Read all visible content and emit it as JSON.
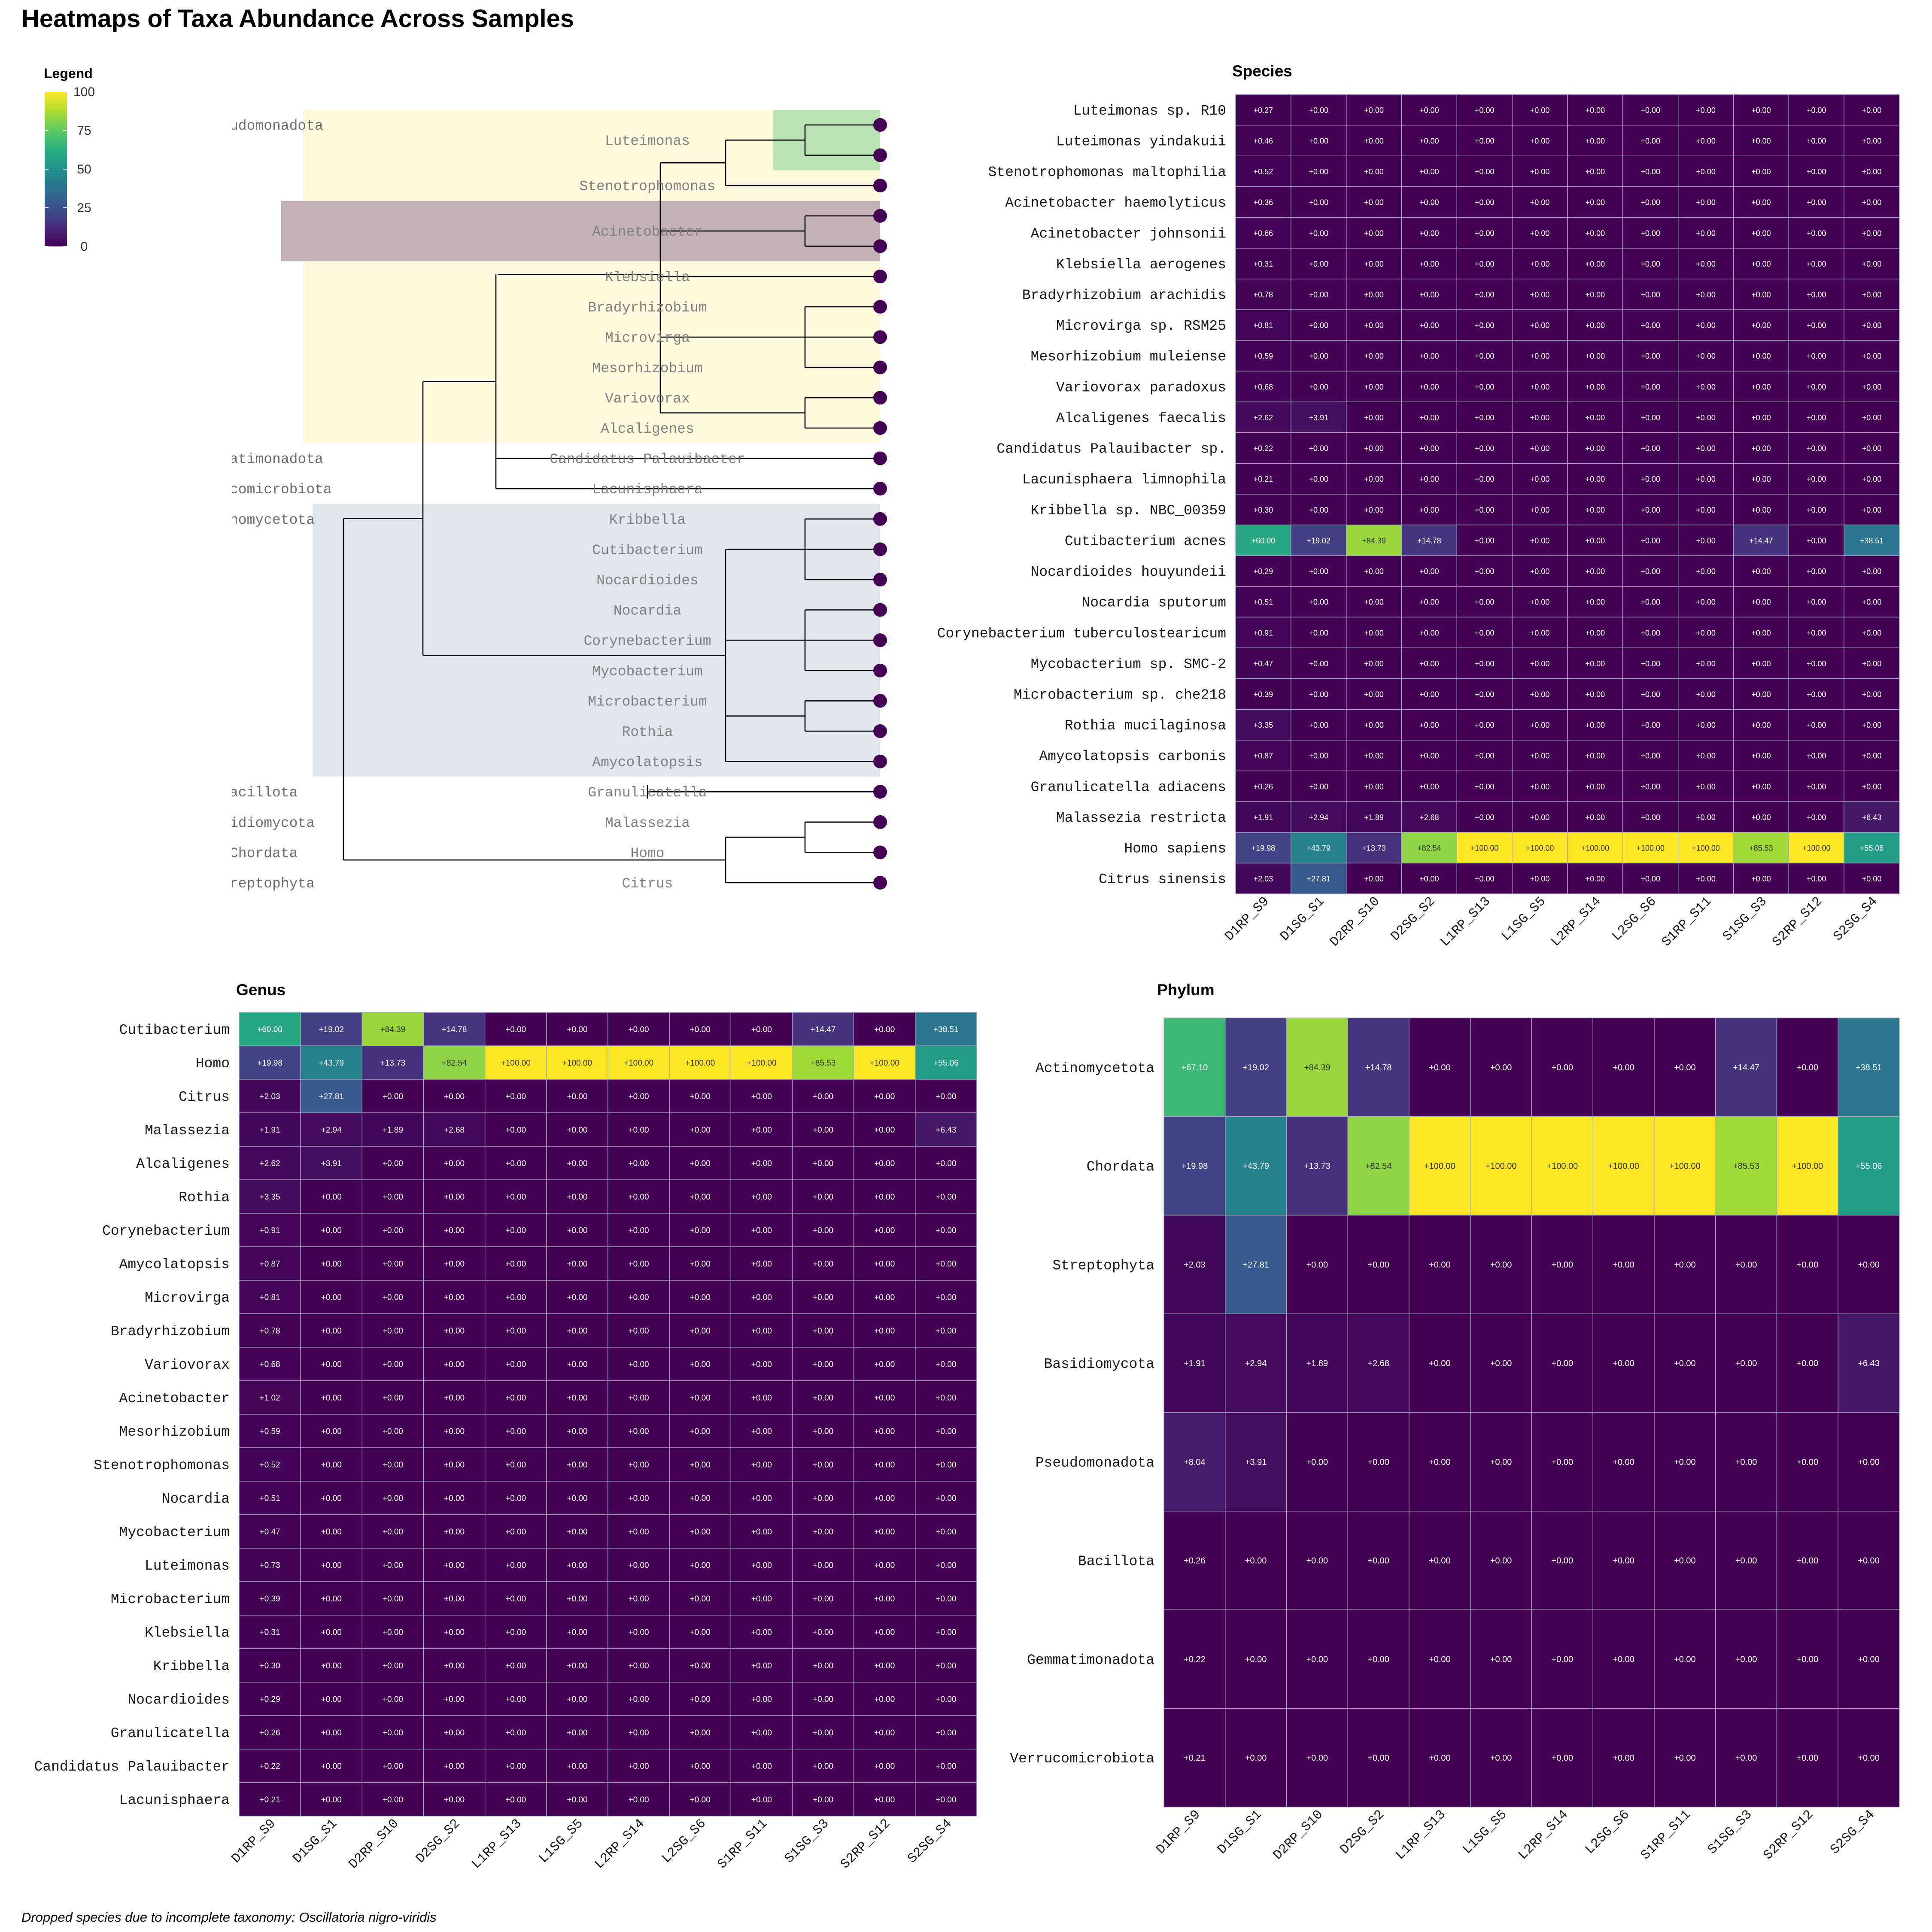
{
  "title": "Heatmaps of Taxa Abundance Across Samples",
  "footnote": "Dropped species due to incomplete taxonomy: Oscillatoria nigro-viridis",
  "legend": {
    "title": "Legend",
    "ticks": [
      100,
      75,
      50,
      25,
      0
    ],
    "range": [
      0,
      100
    ],
    "palette": "viridis"
  },
  "samples": [
    "D1RP_S9",
    "D1SG_S1",
    "D2RP_S10",
    "D2SG_S2",
    "L1RP_S13",
    "L1SG_S5",
    "L2RP_S14",
    "L2SG_S6",
    "S1RP_S11",
    "S1SG_S3",
    "S2RP_S12",
    "S2SG_S4"
  ],
  "tree": {
    "tips": [
      "Luteimonas",
      "Luteimonas",
      "Stenotrophomonas",
      "Acinetobacter",
      "Acinetobacter",
      "Klebsiella",
      "Bradyrhizobium",
      "Microvirga",
      "Mesorhizobium",
      "Variovorax",
      "Alcaligenes",
      "Candidatus Palauibacter",
      "Lacunisphaera",
      "Kribbella",
      "Cutibacterium",
      "Nocardioides",
      "Nocardia",
      "Corynebacterium",
      "Mycobacterium",
      "Microbacterium",
      "Rothia",
      "Amycolatopsis",
      "Granulicatella",
      "Malassezia",
      "Homo",
      "Citrus"
    ],
    "genus_labels": [
      "Luteimonas",
      "Stenotrophomonas",
      "Acinetobacter",
      "Klebsiella",
      "Bradyrhizobium",
      "Microvirga",
      "Mesorhizobium",
      "Variovorax",
      "Alcaligenes",
      "Candidatus Palauibacter",
      "Lacunisphaera",
      "Kribbella",
      "Cutibacterium",
      "Nocardioides",
      "Nocardia",
      "Corynebacterium",
      "Mycobacterium",
      "Microbacterium",
      "Rothia",
      "Amycolatopsis",
      "Granulicatella",
      "Malassezia",
      "Homo",
      "Citrus"
    ],
    "phylum_labels": [
      {
        "text": "udomonadota",
        "tip": 0
      },
      {
        "text": "atimonadota",
        "tip": 11
      },
      {
        "text": "comicrobiota",
        "tip": 12
      },
      {
        "text": "nomycetota",
        "tip": 13
      },
      {
        "text": "acillota",
        "tip": 22
      },
      {
        "text": "idiomycota",
        "tip": 23
      },
      {
        "text": "Chordata",
        "tip": 24
      },
      {
        "text": "reptophyta",
        "tip": 25
      }
    ],
    "highlights": [
      {
        "name": "Pseudomonadota",
        "color": "#fdf9dc"
      },
      {
        "name": "Actinomycetota",
        "color": "#e1e6ec"
      },
      {
        "name": "Luteimonas",
        "color": "#b9e3b3"
      },
      {
        "name": "Acinetobacter",
        "color": "#c3b1b7"
      }
    ],
    "tip_color": "#440154",
    "label_color": "#7f7f7f"
  },
  "chart_data": [
    {
      "type": "heatmap",
      "title": "Species",
      "x": [
        "D1RP_S9",
        "D1SG_S1",
        "D2RP_S10",
        "D2SG_S2",
        "L1RP_S13",
        "L1SG_S5",
        "L2RP_S14",
        "L2SG_S6",
        "S1RP_S11",
        "S1SG_S3",
        "S2RP_S12",
        "S2SG_S4"
      ],
      "rows": [
        "Luteimonas sp. R10",
        "Luteimonas yindakuii",
        "Stenotrophomonas maltophilia",
        "Acinetobacter haemolyticus",
        "Acinetobacter johnsonii",
        "Klebsiella aerogenes",
        "Bradyrhizobium arachidis",
        "Microvirga sp. RSM25",
        "Mesorhizobium muleiense",
        "Variovorax paradoxus",
        "Alcaligenes faecalis",
        "Candidatus Palauibacter sp.",
        "Lacunisphaera limnophila",
        "Kribbella sp. NBC_00359",
        "Cutibacterium acnes",
        "Nocardioides houyundeii",
        "Nocardia sputorum",
        "Corynebacterium tuberculostearicum",
        "Mycobacterium sp. SMC-2",
        "Microbacterium sp. che218",
        "Rothia mucilaginosa",
        "Amycolatopsis carbonis",
        "Granulicatella adiacens",
        "Malassezia restricta",
        "Homo sapiens",
        "Citrus sinensis"
      ],
      "values": [
        [
          0.27,
          0,
          0,
          0,
          0,
          0,
          0,
          0,
          0,
          0,
          0,
          0
        ],
        [
          0.46,
          0,
          0,
          0,
          0,
          0,
          0,
          0,
          0,
          0,
          0,
          0
        ],
        [
          0.52,
          0,
          0,
          0,
          0,
          0,
          0,
          0,
          0,
          0,
          0,
          0
        ],
        [
          0.36,
          0,
          0,
          0,
          0,
          0,
          0,
          0,
          0,
          0,
          0,
          0
        ],
        [
          0.66,
          0,
          0,
          0,
          0,
          0,
          0,
          0,
          0,
          0,
          0,
          0
        ],
        [
          0.31,
          0,
          0,
          0,
          0,
          0,
          0,
          0,
          0,
          0,
          0,
          0
        ],
        [
          0.78,
          0,
          0,
          0,
          0,
          0,
          0,
          0,
          0,
          0,
          0,
          0
        ],
        [
          0.81,
          0,
          0,
          0,
          0,
          0,
          0,
          0,
          0,
          0,
          0,
          0
        ],
        [
          0.59,
          0,
          0,
          0,
          0,
          0,
          0,
          0,
          0,
          0,
          0,
          0
        ],
        [
          0.68,
          0,
          0,
          0,
          0,
          0,
          0,
          0,
          0,
          0,
          0,
          0
        ],
        [
          2.62,
          3.91,
          0,
          0,
          0,
          0,
          0,
          0,
          0,
          0,
          0,
          0
        ],
        [
          0.22,
          0,
          0,
          0,
          0,
          0,
          0,
          0,
          0,
          0,
          0,
          0
        ],
        [
          0.21,
          0,
          0,
          0,
          0,
          0,
          0,
          0,
          0,
          0,
          0,
          0
        ],
        [
          0.3,
          0,
          0,
          0,
          0,
          0,
          0,
          0,
          0,
          0,
          0,
          0
        ],
        [
          60.0,
          19.02,
          84.39,
          14.78,
          0,
          0,
          0,
          0,
          0,
          14.47,
          0,
          38.51
        ],
        [
          0.29,
          0,
          0,
          0,
          0,
          0,
          0,
          0,
          0,
          0,
          0,
          0
        ],
        [
          0.51,
          0,
          0,
          0,
          0,
          0,
          0,
          0,
          0,
          0,
          0,
          0
        ],
        [
          0.91,
          0,
          0,
          0,
          0,
          0,
          0,
          0,
          0,
          0,
          0,
          0
        ],
        [
          0.47,
          0,
          0,
          0,
          0,
          0,
          0,
          0,
          0,
          0,
          0,
          0
        ],
        [
          0.39,
          0,
          0,
          0,
          0,
          0,
          0,
          0,
          0,
          0,
          0,
          0
        ],
        [
          3.35,
          0,
          0,
          0,
          0,
          0,
          0,
          0,
          0,
          0,
          0,
          0
        ],
        [
          0.87,
          0,
          0,
          0,
          0,
          0,
          0,
          0,
          0,
          0,
          0,
          0
        ],
        [
          0.26,
          0,
          0,
          0,
          0,
          0,
          0,
          0,
          0,
          0,
          0,
          0
        ],
        [
          1.91,
          2.94,
          1.89,
          2.68,
          0,
          0,
          0,
          0,
          0,
          0,
          0,
          6.43
        ],
        [
          19.98,
          43.79,
          13.73,
          82.54,
          100,
          100,
          100,
          100,
          100,
          85.53,
          100,
          55.06
        ],
        [
          2.03,
          27.81,
          0,
          0,
          0,
          0,
          0,
          0,
          0,
          0,
          0,
          0
        ]
      ]
    },
    {
      "type": "heatmap",
      "title": "Genus",
      "x": [
        "D1RP_S9",
        "D1SG_S1",
        "D2RP_S10",
        "D2SG_S2",
        "L1RP_S13",
        "L1SG_S5",
        "L2RP_S14",
        "L2SG_S6",
        "S1RP_S11",
        "S1SG_S3",
        "S2RP_S12",
        "S2SG_S4"
      ],
      "rows": [
        "Cutibacterium",
        "Homo",
        "Citrus",
        "Malassezia",
        "Alcaligenes",
        "Rothia",
        "Corynebacterium",
        "Amycolatopsis",
        "Microvirga",
        "Bradyrhizobium",
        "Variovorax",
        "Acinetobacter",
        "Mesorhizobium",
        "Stenotrophomonas",
        "Nocardia",
        "Mycobacterium",
        "Luteimonas",
        "Microbacterium",
        "Klebsiella",
        "Kribbella",
        "Nocardioides",
        "Granulicatella",
        "Candidatus Palauibacter",
        "Lacunisphaera"
      ],
      "values": [
        [
          60.0,
          19.02,
          84.39,
          14.78,
          0,
          0,
          0,
          0,
          0,
          14.47,
          0,
          38.51
        ],
        [
          19.98,
          43.79,
          13.73,
          82.54,
          100,
          100,
          100,
          100,
          100,
          85.53,
          100,
          55.06
        ],
        [
          2.03,
          27.81,
          0,
          0,
          0,
          0,
          0,
          0,
          0,
          0,
          0,
          0
        ],
        [
          1.91,
          2.94,
          1.89,
          2.68,
          0,
          0,
          0,
          0,
          0,
          0,
          0,
          6.43
        ],
        [
          2.62,
          3.91,
          0,
          0,
          0,
          0,
          0,
          0,
          0,
          0,
          0,
          0
        ],
        [
          3.35,
          0,
          0,
          0,
          0,
          0,
          0,
          0,
          0,
          0,
          0,
          0
        ],
        [
          0.91,
          0,
          0,
          0,
          0,
          0,
          0,
          0,
          0,
          0,
          0,
          0
        ],
        [
          0.87,
          0,
          0,
          0,
          0,
          0,
          0,
          0,
          0,
          0,
          0,
          0
        ],
        [
          0.81,
          0,
          0,
          0,
          0,
          0,
          0,
          0,
          0,
          0,
          0,
          0
        ],
        [
          0.78,
          0,
          0,
          0,
          0,
          0,
          0,
          0,
          0,
          0,
          0,
          0
        ],
        [
          0.68,
          0,
          0,
          0,
          0,
          0,
          0,
          0,
          0,
          0,
          0,
          0
        ],
        [
          1.02,
          0,
          0,
          0,
          0,
          0,
          0,
          0,
          0,
          0,
          0,
          0
        ],
        [
          0.59,
          0,
          0,
          0,
          0,
          0,
          0,
          0,
          0,
          0,
          0,
          0
        ],
        [
          0.52,
          0,
          0,
          0,
          0,
          0,
          0,
          0,
          0,
          0,
          0,
          0
        ],
        [
          0.51,
          0,
          0,
          0,
          0,
          0,
          0,
          0,
          0,
          0,
          0,
          0
        ],
        [
          0.47,
          0,
          0,
          0,
          0,
          0,
          0,
          0,
          0,
          0,
          0,
          0
        ],
        [
          0.73,
          0,
          0,
          0,
          0,
          0,
          0,
          0,
          0,
          0,
          0,
          0
        ],
        [
          0.39,
          0,
          0,
          0,
          0,
          0,
          0,
          0,
          0,
          0,
          0,
          0
        ],
        [
          0.31,
          0,
          0,
          0,
          0,
          0,
          0,
          0,
          0,
          0,
          0,
          0
        ],
        [
          0.3,
          0,
          0,
          0,
          0,
          0,
          0,
          0,
          0,
          0,
          0,
          0
        ],
        [
          0.29,
          0,
          0,
          0,
          0,
          0,
          0,
          0,
          0,
          0,
          0,
          0
        ],
        [
          0.26,
          0,
          0,
          0,
          0,
          0,
          0,
          0,
          0,
          0,
          0,
          0
        ],
        [
          0.22,
          0,
          0,
          0,
          0,
          0,
          0,
          0,
          0,
          0,
          0,
          0
        ],
        [
          0.21,
          0,
          0,
          0,
          0,
          0,
          0,
          0,
          0,
          0,
          0,
          0
        ]
      ]
    },
    {
      "type": "heatmap",
      "title": "Phylum",
      "x": [
        "D1RP_S9",
        "D1SG_S1",
        "D2RP_S10",
        "D2SG_S2",
        "L1RP_S13",
        "L1SG_S5",
        "L2RP_S14",
        "L2SG_S6",
        "S1RP_S11",
        "S1SG_S3",
        "S2RP_S12",
        "S2SG_S4"
      ],
      "rows": [
        "Actinomycetota",
        "Chordata",
        "Streptophyta",
        "Basidiomycota",
        "Pseudomonadota",
        "Bacillota",
        "Gemmatimonadota",
        "Verrucomicrobiota"
      ],
      "values": [
        [
          67.1,
          19.02,
          84.39,
          14.78,
          0,
          0,
          0,
          0,
          0,
          14.47,
          0,
          38.51
        ],
        [
          19.98,
          43.79,
          13.73,
          82.54,
          100,
          100,
          100,
          100,
          100,
          85.53,
          100,
          55.06
        ],
        [
          2.03,
          27.81,
          0,
          0,
          0,
          0,
          0,
          0,
          0,
          0,
          0,
          0
        ],
        [
          1.91,
          2.94,
          1.89,
          2.68,
          0,
          0,
          0,
          0,
          0,
          0,
          0,
          6.43
        ],
        [
          8.04,
          3.91,
          0,
          0,
          0,
          0,
          0,
          0,
          0,
          0,
          0,
          0
        ],
        [
          0.26,
          0,
          0,
          0,
          0,
          0,
          0,
          0,
          0,
          0,
          0,
          0
        ],
        [
          0.22,
          0,
          0,
          0,
          0,
          0,
          0,
          0,
          0,
          0,
          0,
          0
        ],
        [
          0.21,
          0,
          0,
          0,
          0,
          0,
          0,
          0,
          0,
          0,
          0,
          0
        ]
      ]
    }
  ]
}
